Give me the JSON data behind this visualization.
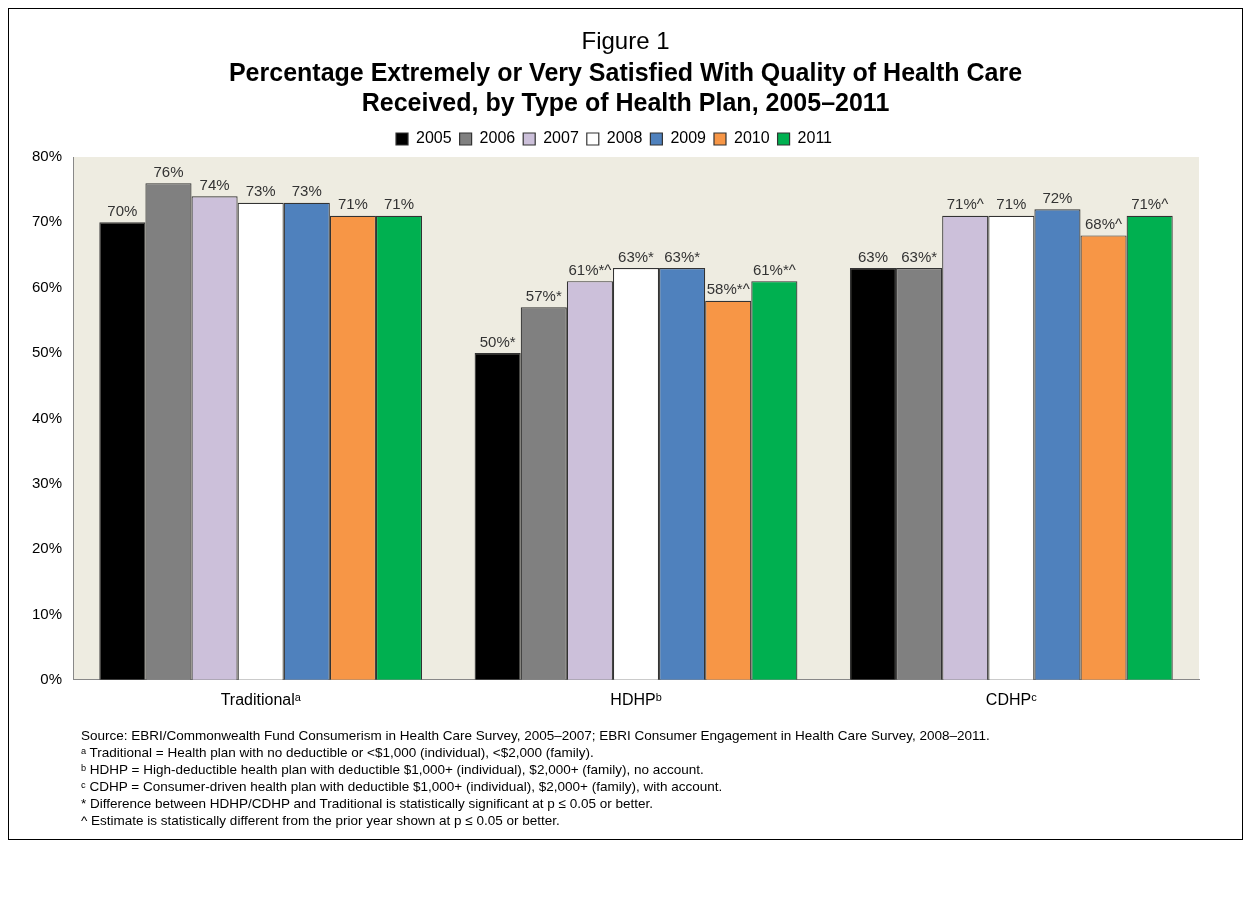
{
  "chart_data": {
    "type": "bar",
    "title": "Figure 1",
    "subtitle": "Percentage Extremely or Very Satisfied With Quality of Health Care Received, by Type of Health Plan, 2005–2011",
    "categories": [
      "Traditionalᵃ",
      "HDHPᵇ",
      "CDHPᶜ"
    ],
    "series": [
      {
        "name": "2005",
        "color": "#000000",
        "values": [
          70,
          50,
          63
        ],
        "value_labels": [
          "70%",
          "50%*",
          "63%"
        ]
      },
      {
        "name": "2006",
        "color": "#808080",
        "values": [
          76,
          57,
          63
        ],
        "value_labels": [
          "76%",
          "57%*",
          "63%*"
        ]
      },
      {
        "name": "2007",
        "color": "#ccc0da",
        "values": [
          74,
          61,
          71
        ],
        "value_labels": [
          "74%",
          "61%*^",
          "71%^"
        ]
      },
      {
        "name": "2008",
        "color": "#ffffff",
        "values": [
          73,
          63,
          71
        ],
        "value_labels": [
          "73%",
          "63%*",
          "71%"
        ]
      },
      {
        "name": "2009",
        "color": "#4f81bd",
        "values": [
          73,
          63,
          72
        ],
        "value_labels": [
          "73%",
          "63%*",
          "72%"
        ]
      },
      {
        "name": "2010",
        "color": "#f79646",
        "values": [
          71,
          58,
          68
        ],
        "value_labels": [
          "71%",
          "58%*^",
          "68%^"
        ]
      },
      {
        "name": "2011",
        "color": "#00b050",
        "values": [
          71,
          61,
          71
        ],
        "value_labels": [
          "71%",
          "61%*^",
          "71%^"
        ]
      }
    ],
    "ylim": [
      0,
      80
    ],
    "yticks": [
      {
        "value": 0,
        "label": "0%"
      },
      {
        "value": 10,
        "label": "10%"
      },
      {
        "value": 20,
        "label": "20%"
      },
      {
        "value": 30,
        "label": "30%"
      },
      {
        "value": 40,
        "label": "40%"
      },
      {
        "value": 50,
        "label": "50%"
      },
      {
        "value": 60,
        "label": "60%"
      },
      {
        "value": 70,
        "label": "70%"
      },
      {
        "value": 80,
        "label": "80%"
      }
    ],
    "grid": false,
    "legend": "top",
    "annotations": [
      "Source: EBRI/Commonwealth Fund Consumerism in Health Care Survey, 2005–2007; EBRI Consumer Engagement in Health Care Survey, 2008–2011.",
      "ᵃ Traditional = Health plan with no deductible or <$1,000 (individual), <$2,000 (family).",
      "ᵇ HDHP = High-deductible health plan with deductible $1,000+ (individual), $2,000+ (family), no account.",
      "ᶜ CDHP = Consumer-driven health plan with deductible $1,000+ (individual), $2,000+ (family), with account.",
      "* Difference between HDHP/CDHP and Traditional is statistically significant at p ≤ 0.05 or better.",
      "^ Estimate is statistically different from the prior year shown at p ≤ 0.05 or better."
    ]
  }
}
